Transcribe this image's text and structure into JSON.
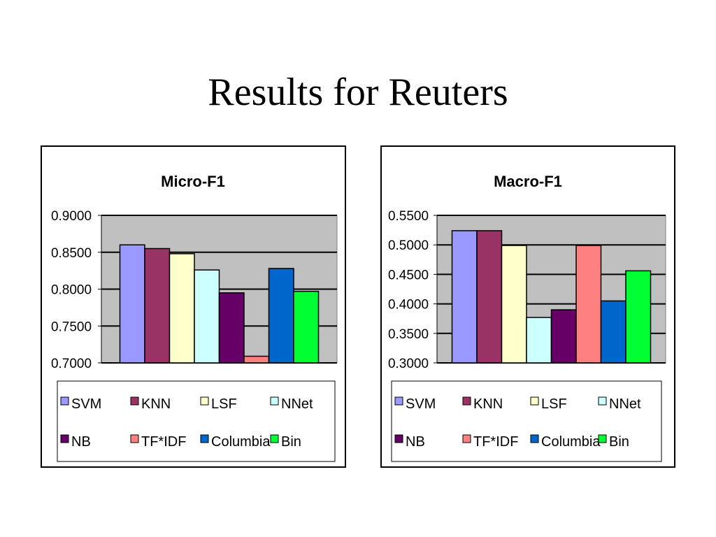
{
  "slide": {
    "title": "Results for Reuters"
  },
  "legend_labels": [
    "SVM",
    "KNN",
    "LSF",
    "NNet",
    "NB",
    "TF*IDF",
    "Columbia",
    "Bin"
  ],
  "colors": {
    "SVM": "#9999ff",
    "KNN": "#993366",
    "LSF": "#ffffcc",
    "NNet": "#ccffff",
    "NB": "#660066",
    "TF*IDF": "#ff8080",
    "Columbia": "#0066cc",
    "Bin": "#00ff33",
    "plot_background": "#c0c0c0"
  },
  "chart_data": [
    {
      "type": "bar",
      "title": "Micro-F1",
      "categories": [
        "SVM",
        "KNN",
        "LSF",
        "NNet",
        "NB",
        "TF*IDF",
        "Columbia",
        "Bin"
      ],
      "values": [
        0.86,
        0.855,
        0.848,
        0.826,
        0.795,
        0.709,
        0.828,
        0.797
      ],
      "ylim": [
        0.7,
        0.9
      ],
      "yticks": [
        "0.9000",
        "0.8500",
        "0.8000",
        "0.7500",
        "0.7000"
      ],
      "grid": true,
      "legend_position": "bottom"
    },
    {
      "type": "bar",
      "title": "Macro-F1",
      "categories": [
        "SVM",
        "KNN",
        "LSF",
        "NNet",
        "NB",
        "TF*IDF",
        "Columbia",
        "Bin"
      ],
      "values": [
        0.524,
        0.524,
        0.499,
        0.377,
        0.39,
        0.499,
        0.405,
        0.456
      ],
      "ylim": [
        0.3,
        0.55
      ],
      "yticks": [
        "0.5500",
        "0.5000",
        "0.4500",
        "0.4000",
        "0.3500",
        "0.3000"
      ],
      "grid": true,
      "legend_position": "bottom"
    }
  ]
}
